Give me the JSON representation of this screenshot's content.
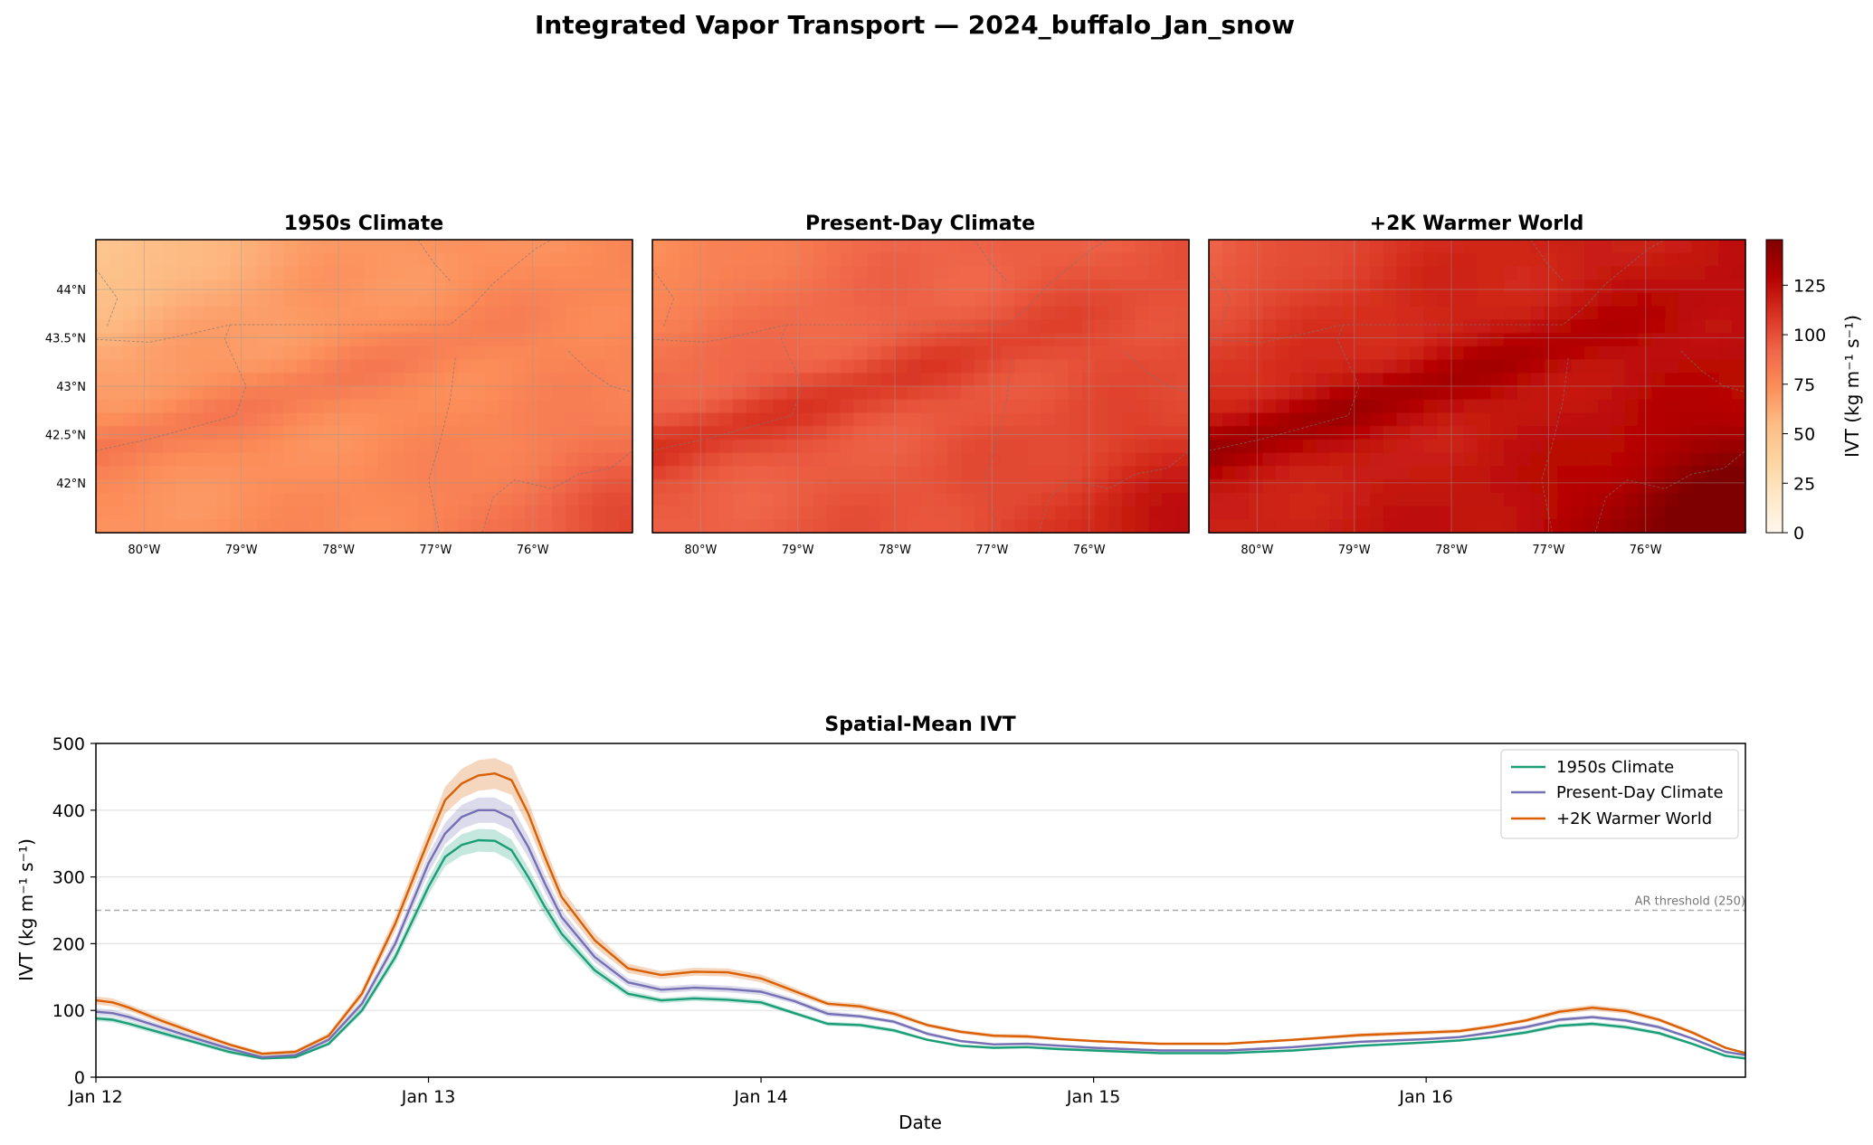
{
  "suptitle": "Integrated Vapor Transport — 2024_buffalo_Jan_snow",
  "maps": {
    "panels": [
      {
        "title": "1950s Climate",
        "intensity": 0
      },
      {
        "title": "Present-Day Climate",
        "intensity": 1
      },
      {
        "title": "+2K Warmer World",
        "intensity": 2
      }
    ],
    "lon_ticks": [
      "80°W",
      "79°W",
      "78°W",
      "77°W",
      "76°W"
    ],
    "lat_ticks": [
      "44°N",
      "43.5°N",
      "43°N",
      "42.5°N",
      "42°N"
    ],
    "colorbar": {
      "label": "IVT (kg m⁻¹ s⁻¹)",
      "ticks": [
        "0",
        "25",
        "50",
        "75",
        "100",
        "125"
      ],
      "range": [
        0,
        148
      ],
      "cmap": [
        "#fff7ec",
        "#fee8c8",
        "#fdd49e",
        "#fdbb84",
        "#fc8d59",
        "#ef6548",
        "#d7301f",
        "#b30000",
        "#7f0000"
      ]
    }
  },
  "chart_data": {
    "type": "line",
    "title": "Spatial-Mean IVT",
    "xlabel": "Date",
    "ylabel": "IVT (kg m⁻¹ s⁻¹)",
    "ylim": [
      0,
      500
    ],
    "yticks": [
      0,
      100,
      200,
      300,
      400,
      500
    ],
    "xlim": [
      0,
      4.96
    ],
    "xticks": [
      {
        "label": "Jan 12",
        "value": 0
      },
      {
        "label": "Jan 13",
        "value": 1
      },
      {
        "label": "Jan 14",
        "value": 2
      },
      {
        "label": "Jan 15",
        "value": 3
      },
      {
        "label": "Jan 16",
        "value": 4
      }
    ],
    "grid": "horizontal",
    "legend_position": "top-right",
    "threshold": {
      "value": 250,
      "label": "AR threshold (250)"
    },
    "x": [
      0,
      0.05,
      0.1,
      0.2,
      0.3,
      0.4,
      0.5,
      0.6,
      0.7,
      0.8,
      0.9,
      1.0,
      1.05,
      1.1,
      1.15,
      1.2,
      1.25,
      1.3,
      1.35,
      1.4,
      1.5,
      1.6,
      1.7,
      1.8,
      1.9,
      2.0,
      2.1,
      2.2,
      2.3,
      2.4,
      2.5,
      2.6,
      2.7,
      2.8,
      2.9,
      3.0,
      3.2,
      3.4,
      3.6,
      3.8,
      4.0,
      4.1,
      4.2,
      4.3,
      4.4,
      4.5,
      4.6,
      4.7,
      4.8,
      4.9,
      4.96
    ],
    "series": [
      {
        "name": "1950s Climate",
        "color": "#1b9e77",
        "values": [
          88,
          86,
          80,
          66,
          52,
          38,
          28,
          30,
          50,
          100,
          180,
          285,
          330,
          348,
          355,
          354,
          340,
          300,
          255,
          215,
          160,
          125,
          115,
          118,
          116,
          112,
          96,
          80,
          78,
          70,
          56,
          47,
          44,
          45,
          42,
          40,
          36,
          36,
          40,
          47,
          52,
          55,
          60,
          67,
          77,
          80,
          75,
          66,
          50,
          32,
          28
        ],
        "band": [
          4,
          4,
          4,
          4,
          3,
          3,
          2,
          2,
          3,
          5,
          8,
          12,
          14,
          16,
          17,
          17,
          16,
          14,
          12,
          10,
          7,
          5,
          4,
          4,
          4,
          4,
          3,
          3,
          3,
          3,
          2,
          2,
          2,
          2,
          2,
          2,
          2,
          2,
          2,
          2,
          2,
          2,
          2,
          3,
          3,
          3,
          3,
          3,
          2,
          2,
          2
        ]
      },
      {
        "name": "Present-Day Climate",
        "color": "#7570b3",
        "values": [
          98,
          96,
          90,
          74,
          58,
          43,
          30,
          33,
          56,
          110,
          200,
          320,
          365,
          390,
          400,
          400,
          388,
          345,
          290,
          240,
          180,
          142,
          131,
          134,
          132,
          128,
          114,
          95,
          91,
          83,
          65,
          54,
          49,
          50,
          47,
          44,
          40,
          40,
          45,
          53,
          57,
          60,
          67,
          75,
          86,
          90,
          85,
          75,
          58,
          38,
          33
        ],
        "band": [
          5,
          5,
          5,
          4,
          4,
          3,
          2,
          2,
          3,
          6,
          9,
          14,
          16,
          18,
          19,
          19,
          18,
          16,
          13,
          11,
          8,
          6,
          5,
          5,
          5,
          5,
          4,
          4,
          3,
          3,
          3,
          2,
          2,
          2,
          2,
          2,
          2,
          2,
          2,
          2,
          2,
          2,
          3,
          3,
          3,
          3,
          3,
          3,
          2,
          2,
          2
        ]
      },
      {
        "name": "+2K Warmer World",
        "color": "#d95f02",
        "values": [
          115,
          112,
          104,
          84,
          66,
          49,
          35,
          38,
          62,
          125,
          230,
          355,
          415,
          440,
          452,
          455,
          445,
          395,
          330,
          270,
          205,
          163,
          153,
          158,
          157,
          148,
          129,
          110,
          106,
          95,
          78,
          68,
          62,
          61,
          57,
          54,
          50,
          50,
          56,
          63,
          67,
          69,
          76,
          85,
          98,
          104,
          99,
          86,
          67,
          44,
          36
        ],
        "band": [
          6,
          6,
          5,
          5,
          4,
          3,
          3,
          3,
          4,
          7,
          11,
          17,
          20,
          22,
          23,
          23,
          22,
          19,
          16,
          13,
          10,
          7,
          6,
          6,
          6,
          6,
          5,
          4,
          4,
          4,
          3,
          3,
          3,
          3,
          2,
          2,
          2,
          2,
          2,
          3,
          3,
          3,
          3,
          3,
          4,
          4,
          4,
          3,
          3,
          2,
          2
        ]
      }
    ]
  }
}
